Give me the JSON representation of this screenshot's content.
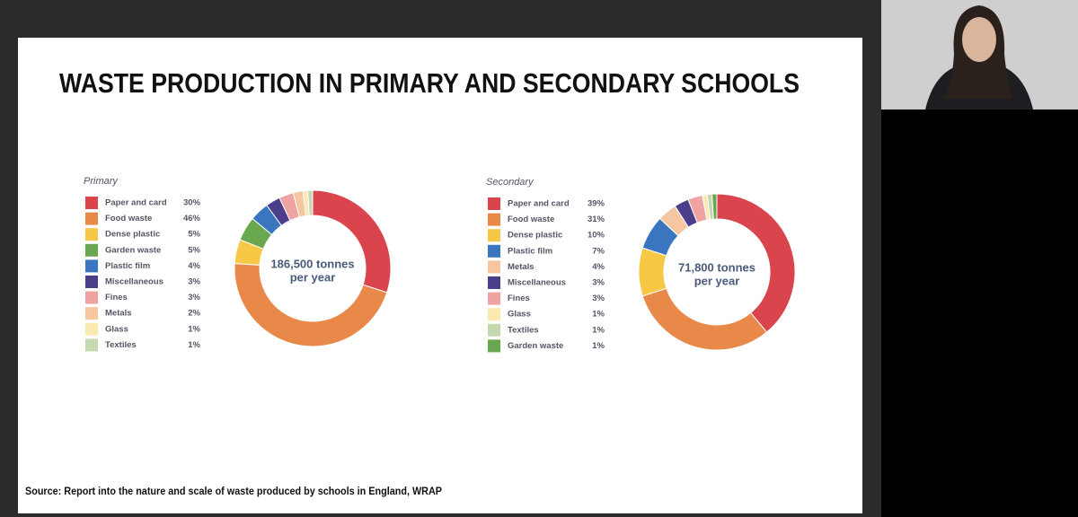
{
  "slide": {
    "title": "WASTE PRODUCTION IN PRIMARY AND SECONDARY SCHOOLS",
    "source": "Source: Report into the nature and scale of waste produced by schools in England, WRAP"
  },
  "chart_data": [
    {
      "type": "donut",
      "title": "Primary",
      "categories": [
        "Paper and card",
        "Food waste",
        "Dense plastic",
        "Garden waste",
        "Plastic film",
        "Miscellaneous",
        "Fines",
        "Metals",
        "Glass",
        "Textiles"
      ],
      "values": [
        30,
        46,
        5,
        5,
        4,
        3,
        3,
        2,
        1,
        1
      ],
      "value_labels": [
        "30%",
        "46%",
        "5%",
        "5%",
        "4%",
        "3%",
        "3%",
        "2%",
        "1%",
        "1%"
      ],
      "colors": [
        "#d9444d",
        "#e8894a",
        "#f7c845",
        "#6aa84f",
        "#3a76c0",
        "#4b3f8c",
        "#f0a3a3",
        "#f5c6a0",
        "#fbeab0",
        "#c4d9b0"
      ],
      "center_label": [
        "186,500 tonnes",
        "per year"
      ]
    },
    {
      "type": "donut",
      "title": "Secondary",
      "categories": [
        "Paper and card",
        "Food waste",
        "Dense plastic",
        "Plastic film",
        "Metals",
        "Miscellaneous",
        "Fines",
        "Glass",
        "Textiles",
        "Garden waste"
      ],
      "values": [
        39,
        31,
        10,
        7,
        4,
        3,
        3,
        1,
        1,
        1
      ],
      "value_labels": [
        "39%",
        "31%",
        "10%",
        "7%",
        "4%",
        "3%",
        "3%",
        "1%",
        "1%",
        "1%"
      ],
      "colors": [
        "#d9444d",
        "#e8894a",
        "#f7c845",
        "#3a76c0",
        "#f5c6a0",
        "#4b3f8c",
        "#f0a3a3",
        "#fbeab0",
        "#c4d9b0",
        "#6aa84f"
      ],
      "center_label": [
        "71,800 tonnes",
        "per year"
      ]
    }
  ]
}
